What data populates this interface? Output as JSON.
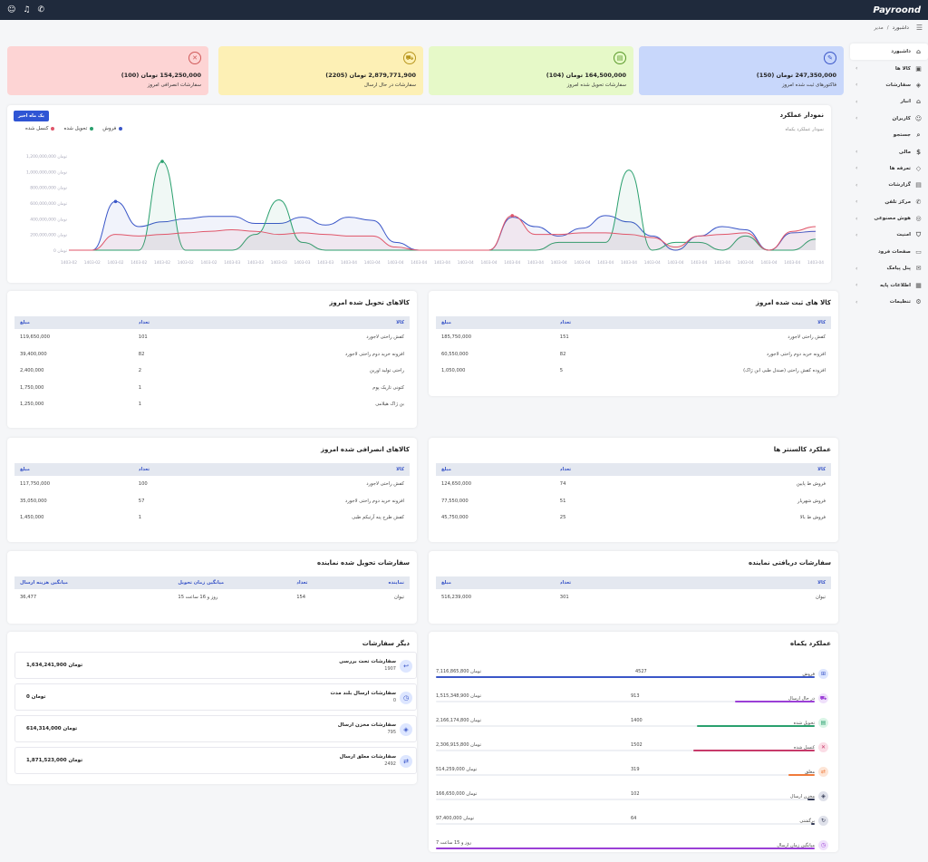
{
  "logo": "Payroond",
  "breadcrumb": {
    "home": "مدیر",
    "sep": "/",
    "current": "داشبورد"
  },
  "sidebar": [
    {
      "label": "داشبورد",
      "icon": "home-icon",
      "glyph": "⌂",
      "chev": false,
      "active": true
    },
    {
      "label": "کالا ها",
      "icon": "box-icon",
      "glyph": "▣",
      "chev": true
    },
    {
      "label": "سفارشات",
      "icon": "layers-icon",
      "glyph": "◈",
      "chev": true
    },
    {
      "label": "انبار",
      "icon": "warehouse-icon",
      "glyph": "⌂",
      "chev": true
    },
    {
      "label": "کاربران",
      "icon": "users-icon",
      "glyph": "☺",
      "chev": true
    },
    {
      "label": "جستجو",
      "icon": "search-icon",
      "glyph": "⌕",
      "chev": false
    },
    {
      "label": "مالی",
      "icon": "dollar-icon",
      "glyph": "$",
      "chev": true
    },
    {
      "label": "تعرفه ها",
      "icon": "tag-icon",
      "glyph": "◇",
      "chev": true
    },
    {
      "label": "گزارشات",
      "icon": "report-icon",
      "glyph": "▤",
      "chev": true
    },
    {
      "label": "مرکز تلفن",
      "icon": "phone-icon",
      "glyph": "✆",
      "chev": true
    },
    {
      "label": "هوش مصنوعی",
      "icon": "ai-icon",
      "glyph": "◎",
      "chev": true
    },
    {
      "label": "امنیت",
      "icon": "shield-icon",
      "glyph": "⛉",
      "chev": true
    },
    {
      "label": "صفحات فرود",
      "icon": "landing-icon",
      "glyph": "▭",
      "chev": false
    },
    {
      "label": "پنل پیامک",
      "icon": "sms-icon",
      "glyph": "✉",
      "chev": true
    },
    {
      "label": "اطلاعات پایه",
      "icon": "grid-icon",
      "glyph": "▦",
      "chev": true
    },
    {
      "label": "تنظیمات",
      "icon": "gear-icon",
      "glyph": "⚙",
      "chev": true
    }
  ],
  "stats": [
    {
      "value": "247,350,000 تومان (150)",
      "label": "فاکتورهای ثبت شده امروز",
      "bg": "#c8d7fb",
      "color": "#3a56c8",
      "icon": "edit-icon",
      "glyph": "✎"
    },
    {
      "value": "164,500,000 تومان (104)",
      "label": "سفارشات تحویل شده امروز",
      "bg": "#e6f9c8",
      "color": "#5a9a2a",
      "icon": "bag-icon",
      "glyph": "▤"
    },
    {
      "value": "2,879,771,900 تومان (2205)",
      "label": "سفارشات در حال ارسال",
      "bg": "#fdf0b5",
      "color": "#b8961e",
      "icon": "truck-icon",
      "glyph": "⛟"
    },
    {
      "value": "154,250,000 تومان (100)",
      "label": "سفارشات انصرافی امروز",
      "bg": "#fdd4d4",
      "color": "#d05a5a",
      "icon": "close-icon",
      "glyph": "✕"
    }
  ],
  "chart": {
    "title": "نمودار عملکرد",
    "subtitle": "نمودار عملکرد یکماه",
    "button": "یک ماه اخیر",
    "legend": [
      {
        "label": "فروش",
        "color": "#3a56c8"
      },
      {
        "label": "تحویل شده",
        "color": "#2aa06e"
      },
      {
        "label": "کنسل شده",
        "color": "#e0566a"
      }
    ]
  },
  "chart_data": {
    "type": "line",
    "yticks": [
      "0 تومان",
      "200,000,000 تومان",
      "400,000,000 تومان",
      "600,000,000 تومان",
      "800,000,000 تومان",
      "1,000,000,000 تومان",
      "1,200,000,000 تومان"
    ],
    "ylim": [
      0,
      1200000000
    ],
    "x": [
      "1403-02",
      "1403-02",
      "1403-02",
      "1403-02",
      "1403-02",
      "1403-02",
      "1403-02",
      "1403-03",
      "1403-03",
      "1403-03",
      "1403-03",
      "1403-03",
      "1403-04",
      "1403-04",
      "1403-04",
      "1403-04",
      "1403-04",
      "1403-04",
      "1403-04",
      "1403-04",
      "1403-04",
      "1403-04",
      "1403-04",
      "1403-04",
      "1403-04",
      "1403-04",
      "1403-04",
      "1403-04",
      "1403-04",
      "1403-04",
      "1403-04",
      "1403-04",
      "1403-04"
    ],
    "series": [
      {
        "name": "فروش",
        "color": "#3a56c8",
        "values": [
          0,
          0,
          620000000,
          300000000,
          360000000,
          400000000,
          430000000,
          430000000,
          340000000,
          340000000,
          420000000,
          320000000,
          420000000,
          380000000,
          100000000,
          0,
          0,
          0,
          0,
          420000000,
          300000000,
          180000000,
          280000000,
          440000000,
          360000000,
          180000000,
          0,
          180000000,
          300000000,
          260000000,
          0,
          220000000,
          240000000
        ]
      },
      {
        "name": "تحویل شده",
        "color": "#2aa06e",
        "values": [
          0,
          0,
          0,
          0,
          1130000000,
          0,
          0,
          0,
          200000000,
          640000000,
          100000000,
          0,
          0,
          0,
          0,
          0,
          0,
          0,
          0,
          0,
          0,
          100000000,
          100000000,
          100000000,
          1020000000,
          0,
          100000000,
          100000000,
          0,
          180000000,
          0,
          0,
          140000000
        ]
      },
      {
        "name": "کنسل شده",
        "color": "#e0566a",
        "values": [
          0,
          0,
          200000000,
          180000000,
          200000000,
          220000000,
          240000000,
          260000000,
          240000000,
          200000000,
          220000000,
          200000000,
          180000000,
          180000000,
          40000000,
          0,
          0,
          0,
          0,
          440000000,
          200000000,
          200000000,
          220000000,
          220000000,
          200000000,
          160000000,
          40000000,
          180000000,
          200000000,
          220000000,
          0,
          240000000,
          300000000
        ]
      }
    ]
  },
  "registered_today": {
    "title": "کالا های ثبت شده امروز",
    "headers": [
      "کالا",
      "تعداد",
      "مبلغ"
    ],
    "rows": [
      [
        "کفش راحتی لاجورد",
        "151",
        "185,750,000"
      ],
      [
        "افزونه خرید دوم راحتی لاجورد",
        "82",
        "60,550,000"
      ],
      [
        "افزوده کفش راحتی (صندل طبی ابن ژاک)",
        "5",
        "1,050,000"
      ]
    ]
  },
  "delivered_today": {
    "title": "کالاهای تحویل شده امروز",
    "headers": [
      "کالا",
      "تعداد",
      "مبلغ"
    ],
    "rows": [
      [
        "کفش راحتی لاجورد",
        "101",
        "119,650,000"
      ],
      [
        "افزونه خرید دوم راحتی لاجورد",
        "82",
        "39,400,000"
      ],
      [
        "راحتی تولید اورین",
        "2",
        "2,400,000"
      ],
      [
        "کتونی تاریک پوم",
        "1",
        "1,750,000"
      ],
      [
        "بن ژاک هیلامی",
        "1",
        "1,250,000"
      ]
    ]
  },
  "callcenter": {
    "title": "عملکرد کالسنتر ها",
    "headers": [
      "کالا",
      "تعداد",
      "مبلغ"
    ],
    "rows": [
      [
        "فروش ط پایین",
        "74",
        "124,650,000"
      ],
      [
        "فروش شهریار",
        "51",
        "77,550,000"
      ],
      [
        "فروش ط بالا",
        "25",
        "45,750,000"
      ]
    ]
  },
  "canceled_today": {
    "title": "کالاهای انصرافی شده امروز",
    "headers": [
      "کالا",
      "تعداد",
      "مبلغ"
    ],
    "rows": [
      [
        "کفش راحتی لاجورد",
        "100",
        "117,750,000"
      ],
      [
        "افزونه خرید دوم راحتی لاجورد",
        "57",
        "35,050,000"
      ],
      [
        "کفش طرح پنه آرتیکم طبی",
        "1",
        "1,450,000"
      ]
    ]
  },
  "agent_received": {
    "title": "سفارشات دریافتی نماینده",
    "headers": [
      "کالا",
      "تعداد",
      "مبلغ"
    ],
    "rows": [
      [
        "تیوان",
        "301",
        "516,239,000"
      ]
    ]
  },
  "agent_delivered": {
    "title": "سفارشات تحویل شده نماینده",
    "headers": [
      "نماینده",
      "تعداد",
      "میانگین زمان تحویل",
      "میانگین هزینه ارسال"
    ],
    "rows": [
      [
        "تیوان",
        "154",
        "15 روز و 16 ساعت",
        "36,477"
      ]
    ]
  },
  "other_orders": {
    "title": "دیگر سفارشات",
    "items": [
      {
        "title": "سفارشات تحت بررسی",
        "count": "1907",
        "value": "1,634,241,900 تومان",
        "icon": "return-icon",
        "glyph": "↩"
      },
      {
        "title": "سفارشات ارسال بلند مدت",
        "count": "0",
        "value": "0 تومان",
        "icon": "clock-icon",
        "glyph": "◷"
      },
      {
        "title": "سفارشات مخزن ارسال",
        "count": "795",
        "value": "614,314,000 تومان",
        "icon": "stack-icon",
        "glyph": "◈"
      },
      {
        "title": "سفارشات معلق ارسال",
        "count": "2492",
        "value": "1,871,523,000 تومان",
        "icon": "swap-icon",
        "glyph": "⇄"
      }
    ]
  },
  "monthly": {
    "title": "عملکرد یکماه",
    "rows": [
      {
        "label": "فروش",
        "count": "4527",
        "amount": "7,116,865,800 تومان",
        "color": "#3a56c8",
        "pct": 100,
        "icon": "cart-icon",
        "glyph": "⊞",
        "bg": "#dde6ff"
      },
      {
        "label": "در حال ارسال",
        "count": "913",
        "amount": "1,515,348,900 تومان",
        "color": "#9b3fd6",
        "pct": 21,
        "icon": "truck-icon",
        "glyph": "⛟",
        "bg": "#efe0fb"
      },
      {
        "label": "تحویل شده",
        "count": "1400",
        "amount": "2,166,174,800 تومان",
        "color": "#2aa06e",
        "pct": 31,
        "icon": "bag-icon",
        "glyph": "▤",
        "bg": "#d9f5e6"
      },
      {
        "label": "کنسل شده",
        "count": "1502",
        "amount": "2,306,915,800 تومان",
        "color": "#c73a6a",
        "pct": 32,
        "icon": "close-icon",
        "glyph": "✕",
        "bg": "#fbdde6"
      },
      {
        "label": "معلق",
        "count": "319",
        "amount": "514,259,000 تومان",
        "color": "#f07a3a",
        "pct": 7,
        "icon": "pause-icon",
        "glyph": "⇄",
        "bg": "#fde5d6"
      },
      {
        "label": "مخزن ارسال",
        "count": "102",
        "amount": "166,650,000 تومان",
        "color": "#333a55",
        "pct": 2,
        "icon": "stack-icon",
        "glyph": "◈",
        "bg": "#dfe1ea"
      },
      {
        "label": "برگشتی",
        "count": "64",
        "amount": "97,400,000 تومان",
        "color": "#333a55",
        "pct": 1,
        "icon": "return-icon",
        "glyph": "↻",
        "bg": "#dfe1ea"
      },
      {
        "label": "میانگین زمان ارسال",
        "count": "",
        "amount": "7 روز و 15 ساعت",
        "color": "#9b3fd6",
        "pct": 100,
        "icon": "time-icon",
        "glyph": "◷",
        "bg": "#efe0fb"
      }
    ]
  }
}
